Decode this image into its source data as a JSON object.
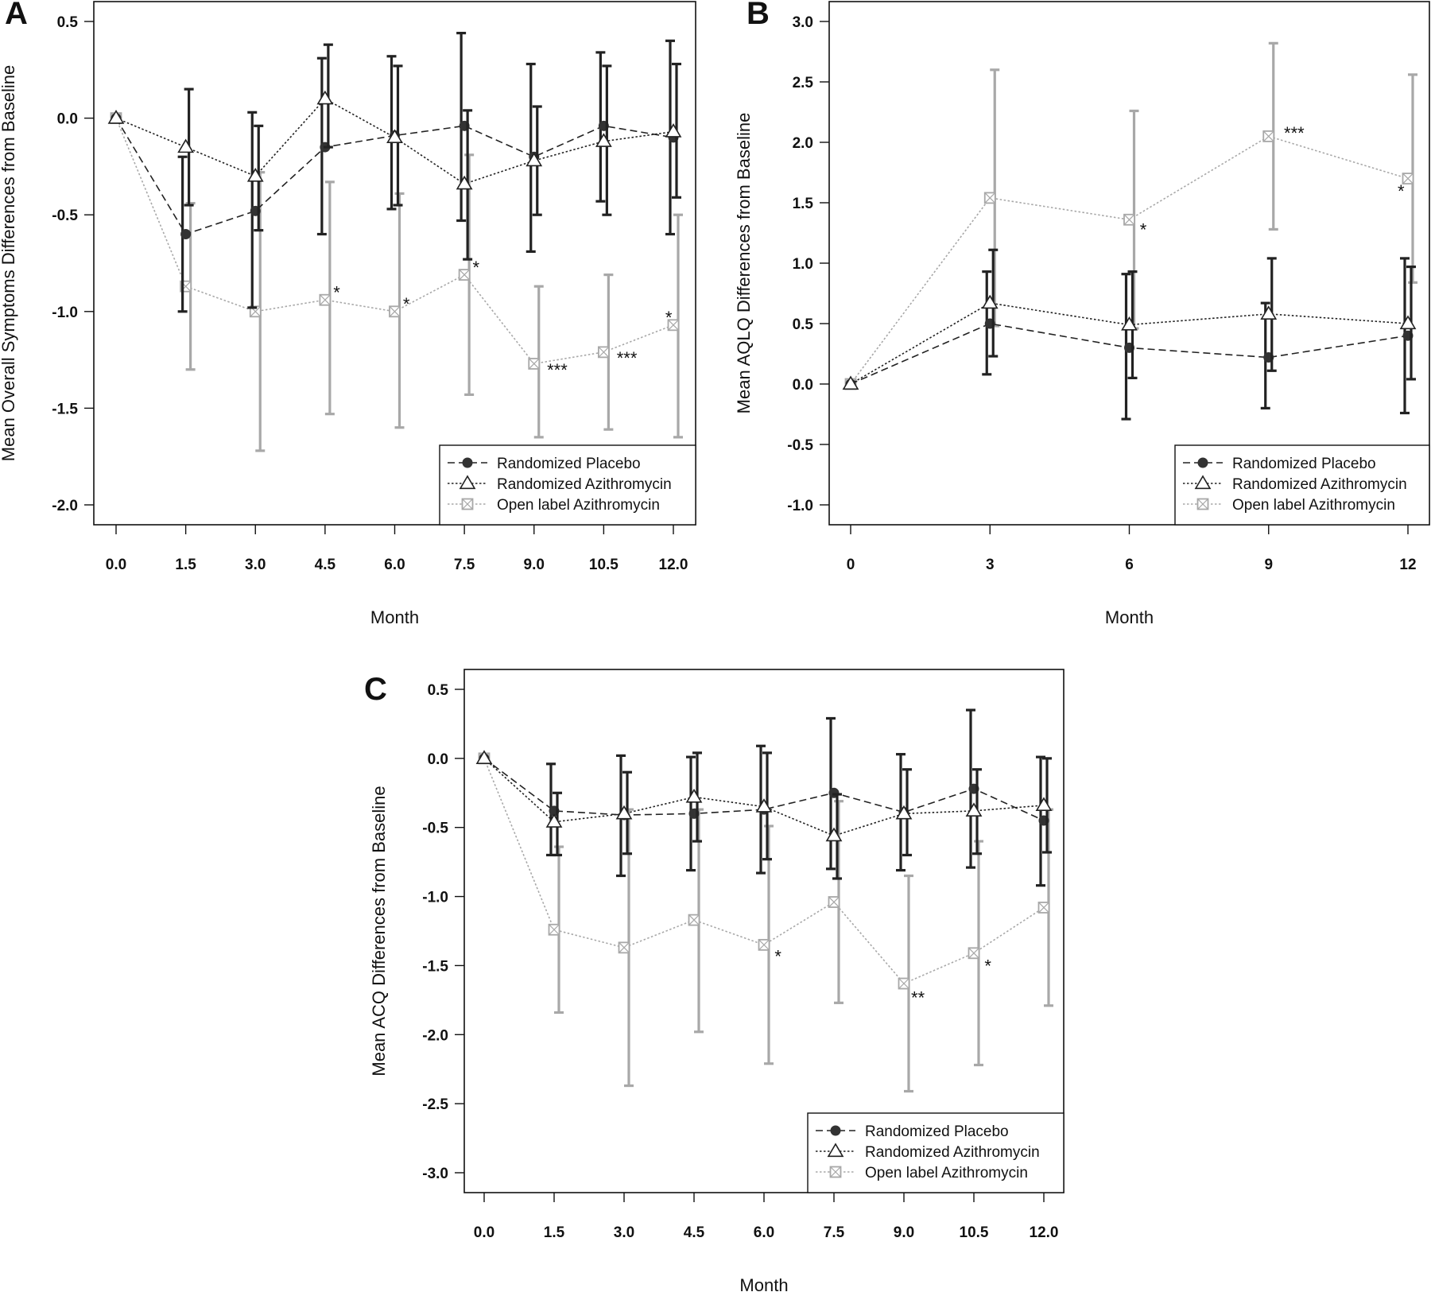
{
  "legend_labels": [
    "Randomized Placebo",
    "Randomized Azithromycin",
    "Open label Azithromycin"
  ],
  "colors": {
    "placebo": "#222222",
    "azithro": "#222222",
    "openlabel": "#a8a8a8"
  },
  "chart_data": [
    {
      "id": "A",
      "type": "line",
      "panel_letter": "A",
      "xlabel": "Month",
      "ylabel": "Mean Overall Symptoms Differences from Baseline",
      "x": [
        0,
        1.5,
        3,
        4.5,
        6,
        7.5,
        9,
        10.5,
        12
      ],
      "x_tick_labels": [
        "0.0",
        "1.5",
        "3.0",
        "4.5",
        "6.0",
        "7.5",
        "9.0",
        "10.5",
        "12.0"
      ],
      "ylim": [
        -2.0,
        0.5
      ],
      "yticks": [
        0.5,
        0.0,
        -0.5,
        -1.0,
        -1.5,
        -2.0
      ],
      "y_tick_labels": [
        "0.5",
        "0.0",
        "-0.5",
        "-1.0",
        "-1.5",
        "-2.0"
      ],
      "legend_position": "bottom-right",
      "series": [
        {
          "name": "Randomized Placebo",
          "values": [
            0,
            -0.6,
            -0.48,
            -0.15,
            -0.09,
            -0.04,
            -0.2,
            -0.04,
            -0.1
          ],
          "lower": [
            0,
            -1.0,
            -0.98,
            -0.6,
            -0.47,
            -0.53,
            -0.69,
            -0.43,
            -0.6
          ],
          "upper": [
            0,
            -0.2,
            0.03,
            0.31,
            0.32,
            0.44,
            0.28,
            0.34,
            0.4
          ]
        },
        {
          "name": "Randomized Azithromycin",
          "values": [
            0,
            -0.15,
            -0.3,
            0.1,
            -0.1,
            -0.34,
            -0.22,
            -0.12,
            -0.07
          ],
          "lower": [
            0,
            -0.45,
            -0.58,
            -0.15,
            -0.45,
            -0.73,
            -0.5,
            -0.5,
            -0.41
          ],
          "upper": [
            0,
            0.15,
            -0.04,
            0.38,
            0.27,
            0.04,
            0.06,
            0.27,
            0.28
          ]
        },
        {
          "name": "Open label Azithromycin",
          "values": [
            0,
            -0.87,
            -1.0,
            -0.94,
            -1.0,
            -0.81,
            -1.27,
            -1.21,
            -1.07
          ],
          "lower": [
            0,
            -1.3,
            -1.72,
            -1.53,
            -1.6,
            -1.43,
            -1.65,
            -1.61,
            -1.65
          ],
          "upper": [
            0,
            -0.44,
            -0.28,
            -0.33,
            -0.39,
            -0.19,
            -0.87,
            -0.81,
            -0.5
          ]
        }
      ],
      "annotations": [
        {
          "text": "*",
          "x": 4.75,
          "y": -0.9
        },
        {
          "text": "*",
          "x": 6.25,
          "y": -0.96
        },
        {
          "text": "*",
          "x": 7.75,
          "y": -0.77
        },
        {
          "text": "***",
          "x": 9.5,
          "y": -1.3
        },
        {
          "text": "***",
          "x": 11.0,
          "y": -1.24
        },
        {
          "text": "*",
          "x": 11.9,
          "y": -1.03
        }
      ]
    },
    {
      "id": "B",
      "type": "line",
      "panel_letter": "B",
      "xlabel": "Month",
      "ylabel": "Mean AQLQ Differences from Baseline",
      "x": [
        0,
        3,
        6,
        9,
        12
      ],
      "x_tick_labels": [
        "0",
        "3",
        "6",
        "9",
        "12"
      ],
      "ylim": [
        -1.0,
        3.0
      ],
      "yticks": [
        3.0,
        2.5,
        2.0,
        1.5,
        1.0,
        0.5,
        0.0,
        -0.5,
        -1.0
      ],
      "y_tick_labels": [
        "3.0",
        "2.5",
        "2.0",
        "1.5",
        "1.0",
        "0.5",
        "0.0",
        "-0.5",
        "-1.0"
      ],
      "legend_position": "bottom-right",
      "series": [
        {
          "name": "Randomized Placebo",
          "values": [
            0,
            0.5,
            0.3,
            0.22,
            0.4
          ],
          "lower": [
            0,
            0.08,
            -0.29,
            -0.2,
            -0.24
          ],
          "upper": [
            0,
            0.93,
            0.91,
            0.67,
            1.04
          ]
        },
        {
          "name": "Randomized Azithromycin",
          "values": [
            0,
            0.67,
            0.49,
            0.58,
            0.5
          ],
          "lower": [
            0,
            0.23,
            0.05,
            0.11,
            0.04
          ],
          "upper": [
            0,
            1.11,
            0.93,
            1.04,
            0.97
          ]
        },
        {
          "name": "Open label Azithromycin",
          "values": [
            0,
            1.54,
            1.36,
            2.05,
            1.7
          ],
          "lower": [
            0,
            0.48,
            0.46,
            1.28,
            0.84
          ],
          "upper": [
            0,
            2.6,
            2.26,
            2.82,
            2.56
          ]
        }
      ],
      "annotations": [
        {
          "text": "*",
          "x": 6.3,
          "y": 1.28
        },
        {
          "text": "***",
          "x": 9.55,
          "y": 2.08
        },
        {
          "text": "*",
          "x": 11.85,
          "y": 1.6
        }
      ]
    },
    {
      "id": "C",
      "type": "line",
      "panel_letter": "C",
      "xlabel": "Month",
      "ylabel": "Mean ACQ Differences from Baseline",
      "x": [
        0,
        1.5,
        3,
        4.5,
        6,
        7.5,
        9,
        10.5,
        12
      ],
      "x_tick_labels": [
        "0.0",
        "1.5",
        "3.0",
        "4.5",
        "6.0",
        "7.5",
        "9.0",
        "10.5",
        "12.0"
      ],
      "ylim": [
        -3.0,
        0.5
      ],
      "yticks": [
        0.5,
        0.0,
        -0.5,
        -1.0,
        -1.5,
        -2.0,
        -2.5,
        -3.0
      ],
      "y_tick_labels": [
        "0.5",
        "0.0",
        "-0.5",
        "-1.0",
        "-1.5",
        "-2.0",
        "-2.5",
        "-3.0"
      ],
      "legend_position": "bottom-right",
      "series": [
        {
          "name": "Randomized Placebo",
          "values": [
            0,
            -0.38,
            -0.41,
            -0.4,
            -0.37,
            -0.25,
            -0.39,
            -0.22,
            -0.45
          ],
          "lower": [
            0,
            -0.7,
            -0.85,
            -0.81,
            -0.83,
            -0.8,
            -0.81,
            -0.79,
            -0.92
          ],
          "upper": [
            0,
            -0.04,
            0.02,
            0.01,
            0.09,
            0.29,
            0.03,
            0.35,
            0.01
          ]
        },
        {
          "name": "Randomized Azithromycin",
          "values": [
            0,
            -0.46,
            -0.4,
            -0.28,
            -0.35,
            -0.56,
            -0.4,
            -0.38,
            -0.34
          ],
          "lower": [
            0,
            -0.7,
            -0.69,
            -0.6,
            -0.73,
            -0.87,
            -0.7,
            -0.69,
            -0.68
          ],
          "upper": [
            0,
            -0.25,
            -0.1,
            0.04,
            0.04,
            -0.26,
            -0.08,
            -0.08,
            0.0
          ]
        },
        {
          "name": "Open label Azithromycin",
          "values": [
            0,
            -1.24,
            -1.37,
            -1.17,
            -1.35,
            -1.04,
            -1.63,
            -1.41,
            -1.08
          ],
          "lower": [
            0,
            -1.84,
            -2.37,
            -1.98,
            -2.21,
            -1.77,
            -2.41,
            -2.22,
            -1.79
          ],
          "upper": [
            0,
            -0.64,
            -0.37,
            -0.37,
            -0.49,
            -0.31,
            -0.85,
            -0.6,
            -0.37
          ]
        }
      ],
      "annotations": [
        {
          "text": "*",
          "x": 6.3,
          "y": -1.43
        },
        {
          "text": "**",
          "x": 9.3,
          "y": -1.73
        },
        {
          "text": "*",
          "x": 10.8,
          "y": -1.5
        }
      ]
    }
  ]
}
